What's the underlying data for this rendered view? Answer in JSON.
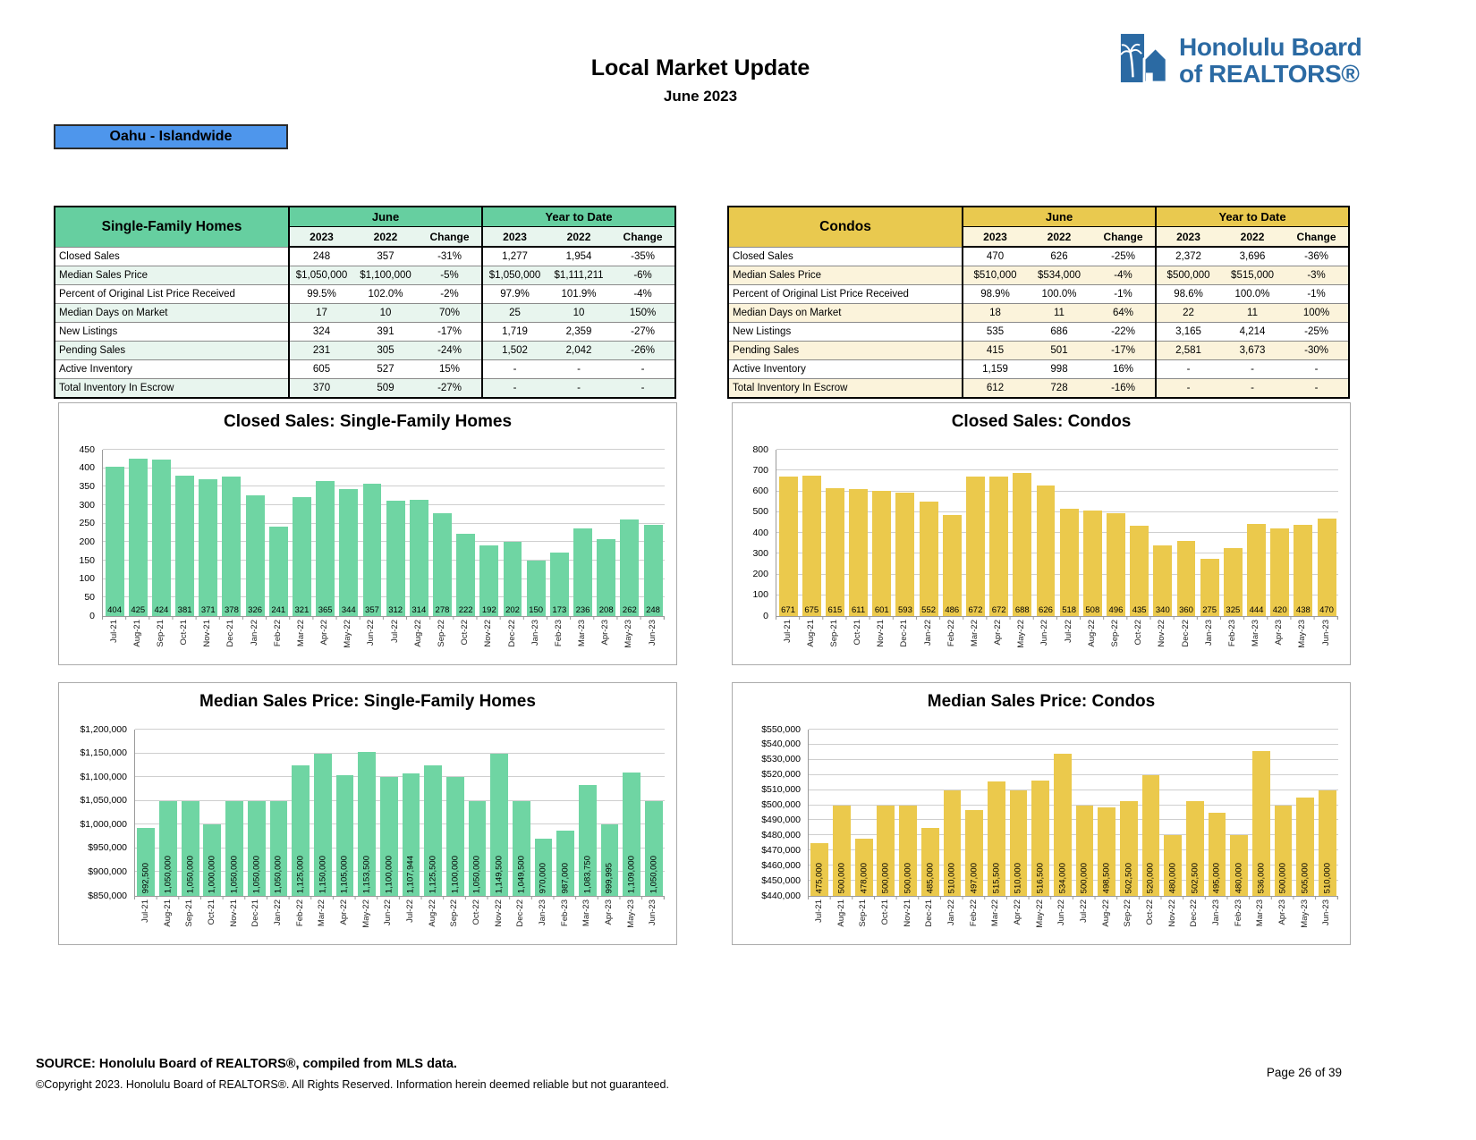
{
  "header": {
    "title": "Local Market Update",
    "subtitle": "June 2023",
    "region": "Oahu - Islandwide",
    "logo_line1": "Honolulu Board",
    "logo_line2": "of REALTORS®"
  },
  "colors": {
    "green": "#66CFA0",
    "green_bar": "#6FD5A3",
    "green_light": "#E8F5EE",
    "yellow": "#E9C94F",
    "yellow_bar": "#EBC94C",
    "yellow_light": "#FBF3DB",
    "badge_blue": "#4E96EC",
    "logo_blue": "#2B6AA3"
  },
  "tables": [
    {
      "name": "Single-Family Homes",
      "theme": "t-green",
      "groups": [
        "June",
        "Year to Date"
      ],
      "columns": [
        "2023",
        "2022",
        "Change",
        "2023",
        "2022",
        "Change"
      ],
      "rows": [
        {
          "label": "Closed Sales",
          "values": [
            "248",
            "357",
            "-31%",
            "1,277",
            "1,954",
            "-35%"
          ]
        },
        {
          "label": "Median Sales Price",
          "values": [
            "$1,050,000",
            "$1,100,000",
            "-5%",
            "$1,050,000",
            "$1,111,211",
            "-6%"
          ]
        },
        {
          "label": "Percent of Original List Price Received",
          "values": [
            "99.5%",
            "102.0%",
            "-2%",
            "97.9%",
            "101.9%",
            "-4%"
          ]
        },
        {
          "label": "Median Days on Market",
          "values": [
            "17",
            "10",
            "70%",
            "25",
            "10",
            "150%"
          ]
        },
        {
          "label": "New Listings",
          "values": [
            "324",
            "391",
            "-17%",
            "1,719",
            "2,359",
            "-27%"
          ]
        },
        {
          "label": "Pending Sales",
          "values": [
            "231",
            "305",
            "-24%",
            "1,502",
            "2,042",
            "-26%"
          ]
        },
        {
          "label": "Active Inventory",
          "values": [
            "605",
            "527",
            "15%",
            "-",
            "-",
            "-"
          ]
        },
        {
          "label": "Total Inventory In Escrow",
          "values": [
            "370",
            "509",
            "-27%",
            "-",
            "-",
            "-"
          ]
        }
      ]
    },
    {
      "name": "Condos",
      "theme": "t-yellow",
      "groups": [
        "June",
        "Year to Date"
      ],
      "columns": [
        "2023",
        "2022",
        "Change",
        "2023",
        "2022",
        "Change"
      ],
      "rows": [
        {
          "label": "Closed Sales",
          "values": [
            "470",
            "626",
            "-25%",
            "2,372",
            "3,696",
            "-36%"
          ]
        },
        {
          "label": "Median Sales Price",
          "values": [
            "$510,000",
            "$534,000",
            "-4%",
            "$500,000",
            "$515,000",
            "-3%"
          ]
        },
        {
          "label": "Percent of Original List Price Received",
          "values": [
            "98.9%",
            "100.0%",
            "-1%",
            "98.6%",
            "100.0%",
            "-1%"
          ]
        },
        {
          "label": "Median Days on Market",
          "values": [
            "18",
            "11",
            "64%",
            "22",
            "11",
            "100%"
          ]
        },
        {
          "label": "New Listings",
          "values": [
            "535",
            "686",
            "-22%",
            "3,165",
            "4,214",
            "-25%"
          ]
        },
        {
          "label": "Pending Sales",
          "values": [
            "415",
            "501",
            "-17%",
            "2,581",
            "3,673",
            "-30%"
          ]
        },
        {
          "label": "Active Inventory",
          "values": [
            "1,159",
            "998",
            "16%",
            "-",
            "-",
            "-"
          ]
        },
        {
          "label": "Total Inventory In Escrow",
          "values": [
            "612",
            "728",
            "-16%",
            "-",
            "-",
            "-"
          ]
        }
      ]
    }
  ],
  "chart_data": [
    {
      "type": "bar",
      "title": "Closed Sales: Single-Family Homes",
      "categories": [
        "Jul-21",
        "Aug-21",
        "Sep-21",
        "Oct-21",
        "Nov-21",
        "Dec-21",
        "Jan-22",
        "Feb-22",
        "Mar-22",
        "Apr-22",
        "May-22",
        "Jun-22",
        "Jul-22",
        "Aug-22",
        "Sep-22",
        "Oct-22",
        "Nov-22",
        "Dec-22",
        "Jan-23",
        "Feb-23",
        "Mar-23",
        "Apr-23",
        "May-23",
        "Jun-23"
      ],
      "values": [
        404,
        425,
        424,
        381,
        371,
        378,
        326,
        241,
        321,
        365,
        344,
        357,
        312,
        314,
        278,
        222,
        192,
        202,
        150,
        173,
        236,
        208,
        262,
        248
      ],
      "ylim": [
        0,
        450
      ],
      "ytick": 50,
      "y_format": "plain",
      "value_labels": "horizontal",
      "grid": true,
      "bar_color": "#6FD5A3"
    },
    {
      "type": "bar",
      "title": "Closed Sales: Condos",
      "categories": [
        "Jul-21",
        "Aug-21",
        "Sep-21",
        "Oct-21",
        "Nov-21",
        "Dec-21",
        "Jan-22",
        "Feb-22",
        "Mar-22",
        "Apr-22",
        "May-22",
        "Jun-22",
        "Jul-22",
        "Aug-22",
        "Sep-22",
        "Oct-22",
        "Nov-22",
        "Dec-22",
        "Jan-23",
        "Feb-23",
        "Mar-23",
        "Apr-23",
        "May-23",
        "Jun-23"
      ],
      "values": [
        671,
        675,
        615,
        611,
        601,
        593,
        552,
        486,
        672,
        672,
        688,
        626,
        518,
        508,
        496,
        435,
        340,
        360,
        275,
        325,
        444,
        420,
        438,
        470
      ],
      "ylim": [
        0,
        800
      ],
      "ytick": 100,
      "y_format": "plain",
      "value_labels": "horizontal",
      "grid": true,
      "bar_color": "#EBC94C"
    },
    {
      "type": "bar",
      "title": "Median Sales Price: Single-Family Homes",
      "categories": [
        "Jul-21",
        "Aug-21",
        "Sep-21",
        "Oct-21",
        "Nov-21",
        "Dec-21",
        "Jan-22",
        "Feb-22",
        "Mar-22",
        "Apr-22",
        "May-22",
        "Jun-22",
        "Jul-22",
        "Aug-22",
        "Sep-22",
        "Oct-22",
        "Nov-22",
        "Dec-22",
        "Jan-23",
        "Feb-23",
        "Mar-23",
        "Apr-23",
        "May-23",
        "Jun-23"
      ],
      "values": [
        992500,
        1050000,
        1050000,
        1000000,
        1050000,
        1050000,
        1050000,
        1125000,
        1150000,
        1105000,
        1153500,
        1100000,
        1107944,
        1125500,
        1100000,
        1050000,
        1149500,
        1049500,
        970000,
        987000,
        1083750,
        999995,
        1109000,
        1050000
      ],
      "ylim": [
        850000,
        1200000
      ],
      "ytick": 50000,
      "y_format": "currency",
      "value_labels": "vertical",
      "grid": true,
      "bar_color": "#6FD5A3"
    },
    {
      "type": "bar",
      "title": "Median Sales Price: Condos",
      "categories": [
        "Jul-21",
        "Aug-21",
        "Sep-21",
        "Oct-21",
        "Nov-21",
        "Dec-21",
        "Jan-22",
        "Feb-22",
        "Mar-22",
        "Apr-22",
        "May-22",
        "Jun-22",
        "Jul-22",
        "Aug-22",
        "Sep-22",
        "Oct-22",
        "Nov-22",
        "Dec-22",
        "Jan-23",
        "Feb-23",
        "Mar-23",
        "Apr-23",
        "May-23",
        "Jun-23"
      ],
      "values": [
        475000,
        500000,
        478000,
        500000,
        500000,
        485000,
        510000,
        497000,
        515500,
        510000,
        516500,
        534000,
        500000,
        498500,
        502500,
        520000,
        480000,
        502500,
        495000,
        480000,
        536000,
        500000,
        505000,
        510000
      ],
      "ylim": [
        440000,
        550000
      ],
      "ytick": 10000,
      "y_format": "currency",
      "value_labels": "vertical",
      "grid": true,
      "bar_color": "#EBC94C"
    }
  ],
  "footer": {
    "source": "SOURCE: Honolulu Board of REALTORS®, compiled from MLS data.",
    "copyright": "©Copyright 2023. Honolulu Board of REALTORS®. All Rights Reserved. Information herein deemed reliable but not guaranteed.",
    "page": "Page 26 of 39"
  }
}
